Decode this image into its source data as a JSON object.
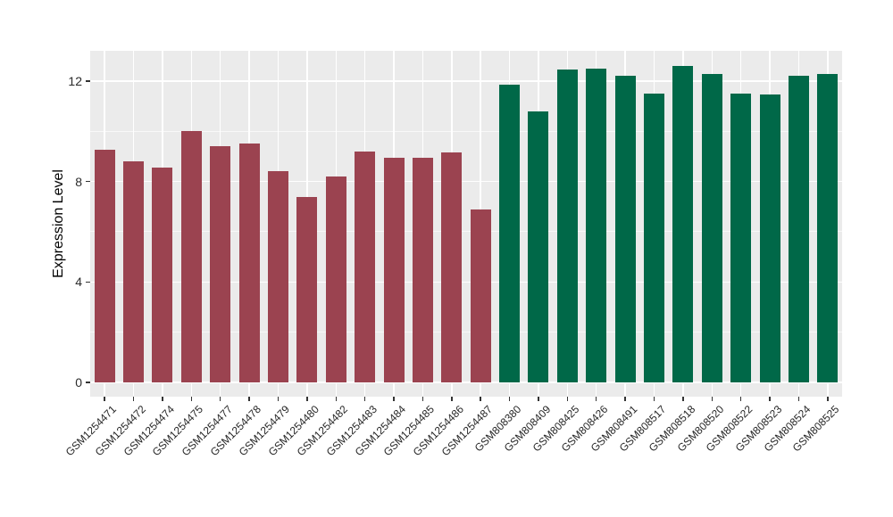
{
  "chart_data": {
    "type": "bar",
    "title": "",
    "xlabel": "",
    "ylabel": "Expression Level",
    "yticks": [
      0,
      4,
      8,
      12
    ],
    "y_minor_gridlines": [
      2,
      6,
      10
    ],
    "ylim": [
      0,
      13.2
    ],
    "legend_position": "none",
    "grid": "on",
    "panel_background": "#EBEBEB",
    "gridline_color": "#FFFFFF",
    "palette": {
      "maroon": "#9B4350",
      "green": "#006848"
    },
    "categories": [
      "GSM1254471",
      "GSM1254472",
      "GSM1254474",
      "GSM1254475",
      "GSM1254477",
      "GSM1254478",
      "GSM1254479",
      "GSM1254480",
      "GSM1254482",
      "GSM1254483",
      "GSM1254484",
      "GSM1254485",
      "GSM1254486",
      "GSM1254487",
      "GSM808380",
      "GSM808409",
      "GSM808425",
      "GSM808426",
      "GSM808491",
      "GSM808517",
      "GSM808518",
      "GSM808520",
      "GSM808522",
      "GSM808523",
      "GSM808524",
      "GSM808525"
    ],
    "values": [
      9.25,
      8.8,
      8.55,
      10.0,
      9.4,
      9.5,
      8.4,
      7.4,
      8.2,
      9.2,
      8.95,
      8.95,
      9.15,
      6.9,
      11.85,
      10.8,
      12.45,
      12.5,
      12.2,
      11.5,
      12.6,
      12.3,
      11.5,
      11.45,
      12.2,
      12.3
    ],
    "bar_groups": [
      "maroon",
      "maroon",
      "maroon",
      "maroon",
      "maroon",
      "maroon",
      "maroon",
      "maroon",
      "maroon",
      "maroon",
      "maroon",
      "maroon",
      "maroon",
      "maroon",
      "green",
      "green",
      "green",
      "green",
      "green",
      "green",
      "green",
      "green",
      "green",
      "green",
      "green",
      "green"
    ]
  }
}
